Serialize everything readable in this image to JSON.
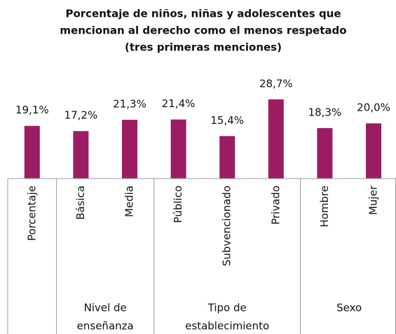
{
  "chart_data": {
    "type": "bar",
    "title": [
      "Porcentaje de niños, niñas y adolescentes que",
      "mencionan al derecho como el menos respetado",
      "(tres primeras menciones)"
    ],
    "categories": [
      "Porcentaje",
      "Básica",
      "Media",
      "Público",
      "Subvencionado",
      "Privado",
      "Hombre",
      "Mujer"
    ],
    "values": [
      19.1,
      17.2,
      21.3,
      21.4,
      15.4,
      28.7,
      18.3,
      20.0
    ],
    "value_labels": [
      "19,1%",
      "17,2%",
      "21,3%",
      "21,4%",
      "15,4%",
      "28,7%",
      "18,3%",
      "20,0%"
    ],
    "groups": [
      {
        "label": [
          "Nivel de",
          "enseñanza"
        ],
        "span": [
          1,
          2
        ]
      },
      {
        "label": [
          "Tipo de",
          "establecimiento"
        ],
        "span": [
          3,
          5
        ]
      },
      {
        "label": [
          "Sexo"
        ],
        "span": [
          6,
          7
        ]
      }
    ],
    "color": "#9c1c64"
  }
}
